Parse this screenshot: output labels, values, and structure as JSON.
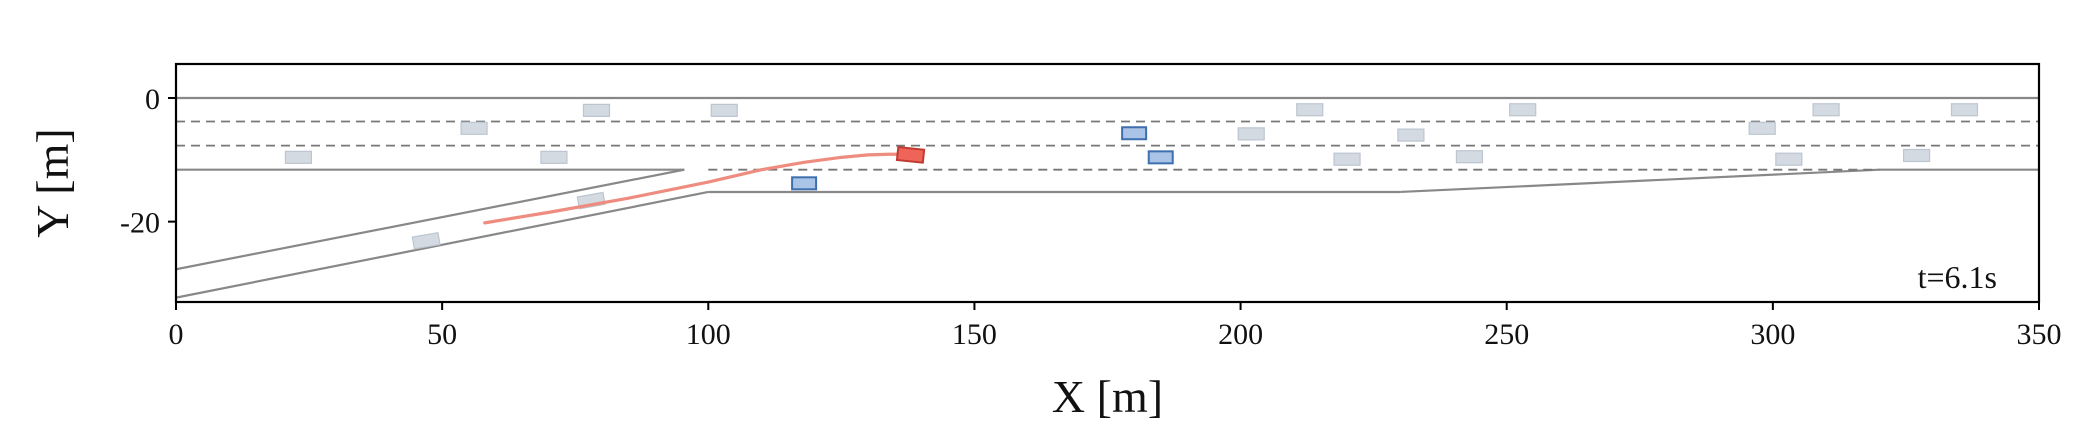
{
  "chart_data": {
    "type": "scatter",
    "xlabel": "X [m]",
    "ylabel": "Y [m]",
    "xlim": [
      0,
      350
    ],
    "ylim": [
      -33,
      5.5
    ],
    "xticks": [
      "0",
      "50",
      "100",
      "150",
      "200",
      "250",
      "300",
      "350"
    ],
    "yticks": [
      "0",
      "-20"
    ],
    "annotation": "t=6.1s",
    "grid": false,
    "colors": {
      "road_line": "#888888",
      "lane_divider": "#777777",
      "trajectory": "#ee8c80",
      "ego_fill": "#ee6458",
      "ego_edge": "#c03a30",
      "agent_fill": "#a9c4e6",
      "agent_edge": "#3e6fae",
      "background_vehicle_fill": "#d4dae2",
      "background_vehicle_edge": "#bcc5d0"
    },
    "road": {
      "edges": [
        [
          [
            0,
            0
          ],
          [
            350,
            0
          ]
        ],
        [
          [
            0,
            -11.6
          ],
          [
            95.5,
            -11.6
          ]
        ],
        [
          [
            95.5,
            -11.6
          ],
          [
            0,
            -27.7
          ]
        ],
        [
          [
            0,
            -32.3
          ],
          [
            100,
            -15.2
          ]
        ],
        [
          [
            100,
            -15.2
          ],
          [
            230,
            -15.2
          ]
        ],
        [
          [
            230,
            -15.2
          ],
          [
            320,
            -11.6
          ]
        ],
        [
          [
            320,
            -11.6
          ],
          [
            350,
            -11.6
          ]
        ]
      ],
      "lane_dividers": [
        [
          [
            0,
            -3.8
          ],
          [
            350,
            -3.8
          ]
        ],
        [
          [
            0,
            -7.7
          ],
          [
            350,
            -7.7
          ]
        ],
        [
          [
            100,
            -11.6
          ],
          [
            320,
            -11.6
          ]
        ]
      ]
    },
    "ego_trajectory": {
      "x": [
        58,
        70,
        85,
        100,
        110,
        118,
        125,
        130,
        134,
        137.5
      ],
      "y": [
        -20.2,
        -18.5,
        -16.2,
        -13.6,
        -11.6,
        -10.4,
        -9.6,
        -9.2,
        -9.1,
        -9.1
      ]
    },
    "ego_vehicle": {
      "x": 138,
      "y": -9.2,
      "heading_deg": -6
    },
    "interacting_vehicles": [
      {
        "x": 118,
        "y": -13.8,
        "heading_deg": 0
      },
      {
        "x": 180,
        "y": -5.7,
        "heading_deg": 0
      },
      {
        "x": 185,
        "y": -9.6,
        "heading_deg": 0
      }
    ],
    "background_vehicles": [
      {
        "x": 23,
        "y": -9.6,
        "heading_deg": 0
      },
      {
        "x": 47,
        "y": -23.1,
        "heading_deg": 10
      },
      {
        "x": 56,
        "y": -4.9,
        "heading_deg": 0
      },
      {
        "x": 71,
        "y": -9.6,
        "heading_deg": 0
      },
      {
        "x": 79,
        "y": -2.0,
        "heading_deg": 0
      },
      {
        "x": 78,
        "y": -16.6,
        "heading_deg": 10
      },
      {
        "x": 103,
        "y": -2.0,
        "heading_deg": 0
      },
      {
        "x": 202,
        "y": -5.8,
        "heading_deg": 0
      },
      {
        "x": 213,
        "y": -1.9,
        "heading_deg": 0
      },
      {
        "x": 220,
        "y": -9.9,
        "heading_deg": 0
      },
      {
        "x": 232,
        "y": -6.0,
        "heading_deg": 0
      },
      {
        "x": 243,
        "y": -9.5,
        "heading_deg": 0
      },
      {
        "x": 253,
        "y": -1.9,
        "heading_deg": 0
      },
      {
        "x": 298,
        "y": -4.9,
        "heading_deg": 0
      },
      {
        "x": 303,
        "y": -9.9,
        "heading_deg": 0
      },
      {
        "x": 310,
        "y": -1.9,
        "heading_deg": 0
      },
      {
        "x": 327,
        "y": -9.3,
        "heading_deg": 0
      },
      {
        "x": 336,
        "y": -1.9,
        "heading_deg": 0
      }
    ]
  }
}
